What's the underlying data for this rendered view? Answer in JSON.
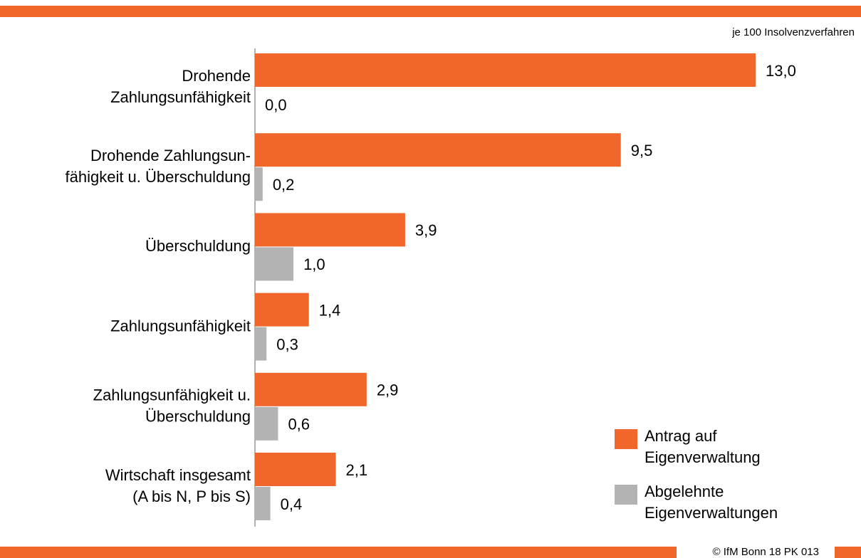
{
  "chart_data": {
    "type": "bar",
    "orientation": "horizontal",
    "unit_note": "je 100 Insolvenzverfahren",
    "footer": "© IfM Bonn 18 PK 013",
    "categories": [
      [
        "Drohende",
        "Zahlungsunfähigkeit"
      ],
      [
        "Drohende Zahlungsun-",
        "fähigkeit u. Überschuldung"
      ],
      [
        "Überschuldung"
      ],
      [
        "Zahlungsunfähigkeit"
      ],
      [
        "Zahlungsunfähigkeit u.",
        "Überschuldung"
      ],
      [
        "Wirtschaft insgesamt",
        "(A bis N, P bis S)"
      ]
    ],
    "series": [
      {
        "name": "Antrag auf Eigenverwaltung",
        "color": "#f0662b",
        "values": [
          13.0,
          9.5,
          3.9,
          1.4,
          2.9,
          2.1
        ],
        "value_labels": [
          "13,0",
          "9,5",
          "3,9",
          "1,4",
          "2,9",
          "2,1"
        ]
      },
      {
        "name": "Abgelehnte Eigenverwaltungen",
        "color": "#b3b3b3",
        "values": [
          0.0,
          0.2,
          1.0,
          0.3,
          0.6,
          0.4
        ],
        "value_labels": [
          "0,0",
          "0,2",
          "1,0",
          "0,3",
          "0,6",
          "0,4"
        ]
      }
    ],
    "xlim": [
      0,
      13
    ],
    "legend": "lower right"
  }
}
